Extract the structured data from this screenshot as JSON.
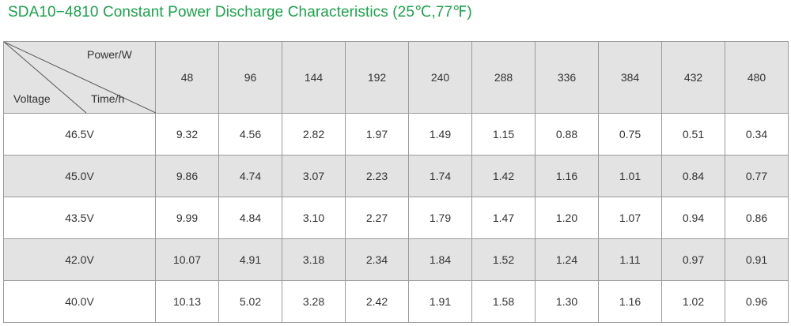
{
  "title": "SDA10−4810 Constant Power Discharge Characteristics (25℃,77℉)",
  "colors": {
    "title": "#1aa34a",
    "header_bg": "#e3e3e3",
    "border": "#9a9a9a"
  },
  "chart_data": {
    "type": "table",
    "title": "SDA10−4810 Constant Power Discharge Characteristics (25℃,77℉)",
    "corner_labels": {
      "power": "Power/W",
      "time": "Time/h",
      "voltage": "Voltage"
    },
    "columns": [
      "48",
      "96",
      "144",
      "192",
      "240",
      "288",
      "336",
      "384",
      "432",
      "480"
    ],
    "rows": [
      {
        "voltage": "46.5V",
        "values": [
          "9.32",
          "4.56",
          "2.82",
          "1.97",
          "1.49",
          "1.15",
          "0.88",
          "0.75",
          "0.51",
          "0.34"
        ]
      },
      {
        "voltage": "45.0V",
        "values": [
          "9.86",
          "4.74",
          "3.07",
          "2.23",
          "1.74",
          "1.42",
          "1.16",
          "1.01",
          "0.84",
          "0.77"
        ]
      },
      {
        "voltage": "43.5V",
        "values": [
          "9.99",
          "4.84",
          "3.10",
          "2.27",
          "1.79",
          "1.47",
          "1.20",
          "1.07",
          "0.94",
          "0.86"
        ]
      },
      {
        "voltage": "42.0V",
        "values": [
          "10.07",
          "4.91",
          "3.18",
          "2.34",
          "1.84",
          "1.52",
          "1.24",
          "1.11",
          "0.97",
          "0.91"
        ]
      },
      {
        "voltage": "40.0V",
        "values": [
          "10.13",
          "5.02",
          "3.28",
          "2.42",
          "1.91",
          "1.58",
          "1.30",
          "1.16",
          "1.02",
          "0.96"
        ]
      }
    ]
  }
}
